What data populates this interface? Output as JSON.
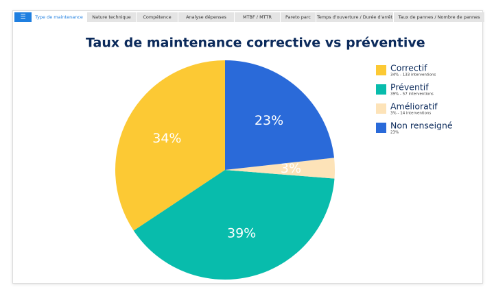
{
  "tabs": [
    "Type de maintenance",
    "Nature technique",
    "Compétence",
    "Analyse dépenses",
    "MTBF / MTTR",
    "Pareto parc",
    "Temps d'ouverture / Durée d'arrêt",
    "Taux de pannes / Nombre de pannes"
  ],
  "chart_data": {
    "type": "pie",
    "title": "Taux de maintenance corrective vs préventive",
    "categories": [
      "Correctif",
      "Préventif",
      "Amélioratif",
      "Non renseigné"
    ],
    "values": [
      34,
      39,
      3,
      23
    ],
    "value_labels": [
      "34%",
      "39%",
      "3%",
      "23%"
    ],
    "legend_details": [
      "34% - 133 interventions",
      "39% - 57 interventions",
      "3% - 14 interventions",
      "23%"
    ],
    "colors": [
      "#fcc934",
      "#08bcac",
      "#fde3b8",
      "#2a6ad9"
    ],
    "legend": "right"
  }
}
